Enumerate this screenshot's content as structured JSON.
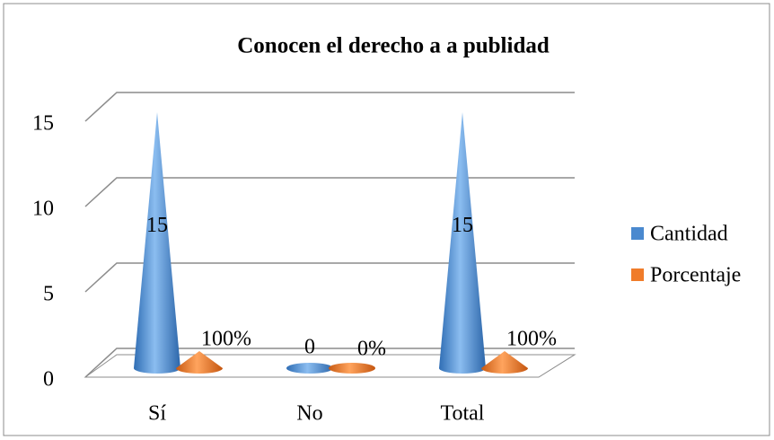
{
  "chart_data": {
    "type": "cone",
    "title": "Conocen el derecho a a publidad",
    "categories": [
      "Sí",
      "No",
      "Total"
    ],
    "series": [
      {
        "name": "Cantidad",
        "color": "#4a89cf",
        "values": [
          15,
          0,
          15
        ]
      },
      {
        "name": "Porcentaje",
        "color": "#f07c2a",
        "values": [
          1,
          0,
          1
        ],
        "value_labels": [
          "100%",
          "0%",
          "100%"
        ]
      }
    ],
    "ylim": [
      0,
      15
    ],
    "yticks": [
      0,
      5,
      10,
      15
    ],
    "grid": true,
    "legend": "right"
  }
}
